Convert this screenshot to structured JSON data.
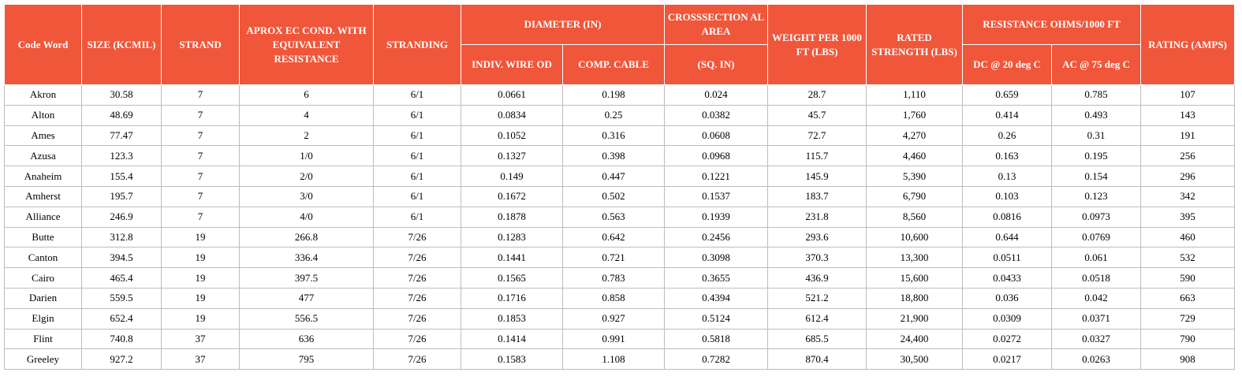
{
  "table": {
    "header": {
      "code_word": "Code Word",
      "size": "SIZE (KCMIL)",
      "strand": "STRAND",
      "aprox": "APROX EC COND. WITH EQUIVALENT RESISTANCE",
      "stranding": "STRANDING",
      "diameter": "DIAMETER (IN)",
      "indiv": "INDIV. WIRE OD",
      "comp": "COMP. CABLE",
      "cross": "CROSSSECTION AL AREA",
      "cross_unit": "(SQ. IN)",
      "weight": "WEIGHT PER 1000 FT (LBS)",
      "rated": "RATED STRENGTH (LBS)",
      "resistance": "RESISTANCE OHMS/1000 FT",
      "dc": "DC @ 20 deg C",
      "ac": "AC @ 75 deg C",
      "rating": "RATING (AMPS)"
    },
    "rows": [
      [
        "Akron",
        "30.58",
        "7",
        "6",
        "6/1",
        "0.0661",
        "0.198",
        "0.024",
        "28.7",
        "1,110",
        "0.659",
        "0.785",
        "107"
      ],
      [
        "Alton",
        "48.69",
        "7",
        "4",
        "6/1",
        "0.0834",
        "0.25",
        "0.0382",
        "45.7",
        "1,760",
        "0.414",
        "0.493",
        "143"
      ],
      [
        "Ames",
        "77.47",
        "7",
        "2",
        "6/1",
        "0.1052",
        "0.316",
        "0.0608",
        "72.7",
        "4,270",
        "0.26",
        "0.31",
        "191"
      ],
      [
        "Azusa",
        "123.3",
        "7",
        "1/0",
        "6/1",
        "0.1327",
        "0.398",
        "0.0968",
        "115.7",
        "4,460",
        "0.163",
        "0.195",
        "256"
      ],
      [
        "Anaheim",
        "155.4",
        "7",
        "2/0",
        "6/1",
        "0.149",
        "0.447",
        "0.1221",
        "145.9",
        "5,390",
        "0.13",
        "0.154",
        "296"
      ],
      [
        "Amherst",
        "195.7",
        "7",
        "3/0",
        "6/1",
        "0.1672",
        "0.502",
        "0.1537",
        "183.7",
        "6,790",
        "0.103",
        "0.123",
        "342"
      ],
      [
        "Alliance",
        "246.9",
        "7",
        "4/0",
        "6/1",
        "0.1878",
        "0.563",
        "0.1939",
        "231.8",
        "8,560",
        "0.0816",
        "0.0973",
        "395"
      ],
      [
        "Butte",
        "312.8",
        "19",
        "266.8",
        "7/26",
        "0.1283",
        "0.642",
        "0.2456",
        "293.6",
        "10,600",
        "0.644",
        "0.0769",
        "460"
      ],
      [
        "Canton",
        "394.5",
        "19",
        "336.4",
        "7/26",
        "0.1441",
        "0.721",
        "0.3098",
        "370.3",
        "13,300",
        "0.0511",
        "0.061",
        "532"
      ],
      [
        "Cairo",
        "465.4",
        "19",
        "397.5",
        "7/26",
        "0.1565",
        "0.783",
        "0.3655",
        "436.9",
        "15,600",
        "0.0433",
        "0.0518",
        "590"
      ],
      [
        "Darien",
        "559.5",
        "19",
        "477",
        "7/26",
        "0.1716",
        "0.858",
        "0.4394",
        "521.2",
        "18,800",
        "0.036",
        "0.042",
        "663"
      ],
      [
        "Elgin",
        "652.4",
        "19",
        "556.5",
        "7/26",
        "0.1853",
        "0.927",
        "0.5124",
        "612.4",
        "21,900",
        "0.0309",
        "0.0371",
        "729"
      ],
      [
        "Flint",
        "740.8",
        "37",
        "636",
        "7/26",
        "0.1414",
        "0.991",
        "0.5818",
        "685.5",
        "24,400",
        "0.0272",
        "0.0327",
        "790"
      ],
      [
        "Greeley",
        "927.2",
        "37",
        "795",
        "7/26",
        "0.1583",
        "1.108",
        "0.7282",
        "870.4",
        "30,500",
        "0.0217",
        "0.0263",
        "908"
      ]
    ]
  }
}
